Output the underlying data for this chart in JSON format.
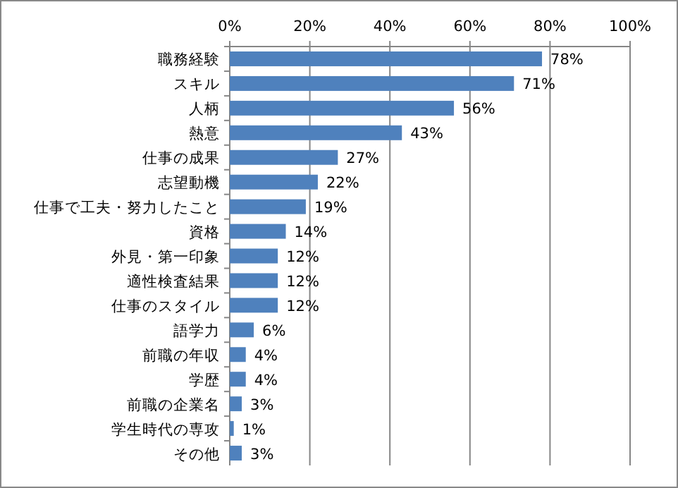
{
  "chart_data": {
    "type": "bar",
    "orientation": "horizontal",
    "color": "#4f81bd",
    "categories": [
      "職務経験",
      "スキル",
      "人柄",
      "熱意",
      "仕事の成果",
      "志望動機",
      "仕事で工夫・努力したこと",
      "資格",
      "外見・第一印象",
      "適性検査結果",
      "仕事のスタイル",
      "語学力",
      "前職の年収",
      "学歴",
      "前職の企業名",
      "学生時代の専攻",
      "その他"
    ],
    "values": [
      78,
      71,
      56,
      43,
      27,
      22,
      19,
      14,
      12,
      12,
      12,
      6,
      4,
      4,
      3,
      1,
      3
    ],
    "value_labels": [
      "78%",
      "71%",
      "56%",
      "43%",
      "27%",
      "22%",
      "19%",
      "14%",
      "12%",
      "12%",
      "12%",
      "6%",
      "4%",
      "4%",
      "3%",
      "1%",
      "3%"
    ],
    "xlim": [
      0,
      100
    ],
    "xticks": [
      {
        "value": 0,
        "label": "0%"
      },
      {
        "value": 20,
        "label": "20%"
      },
      {
        "value": 40,
        "label": "40%"
      },
      {
        "value": 60,
        "label": "60%"
      },
      {
        "value": 80,
        "label": "80%"
      },
      {
        "value": 100,
        "label": "100%"
      }
    ],
    "grid": "x"
  }
}
